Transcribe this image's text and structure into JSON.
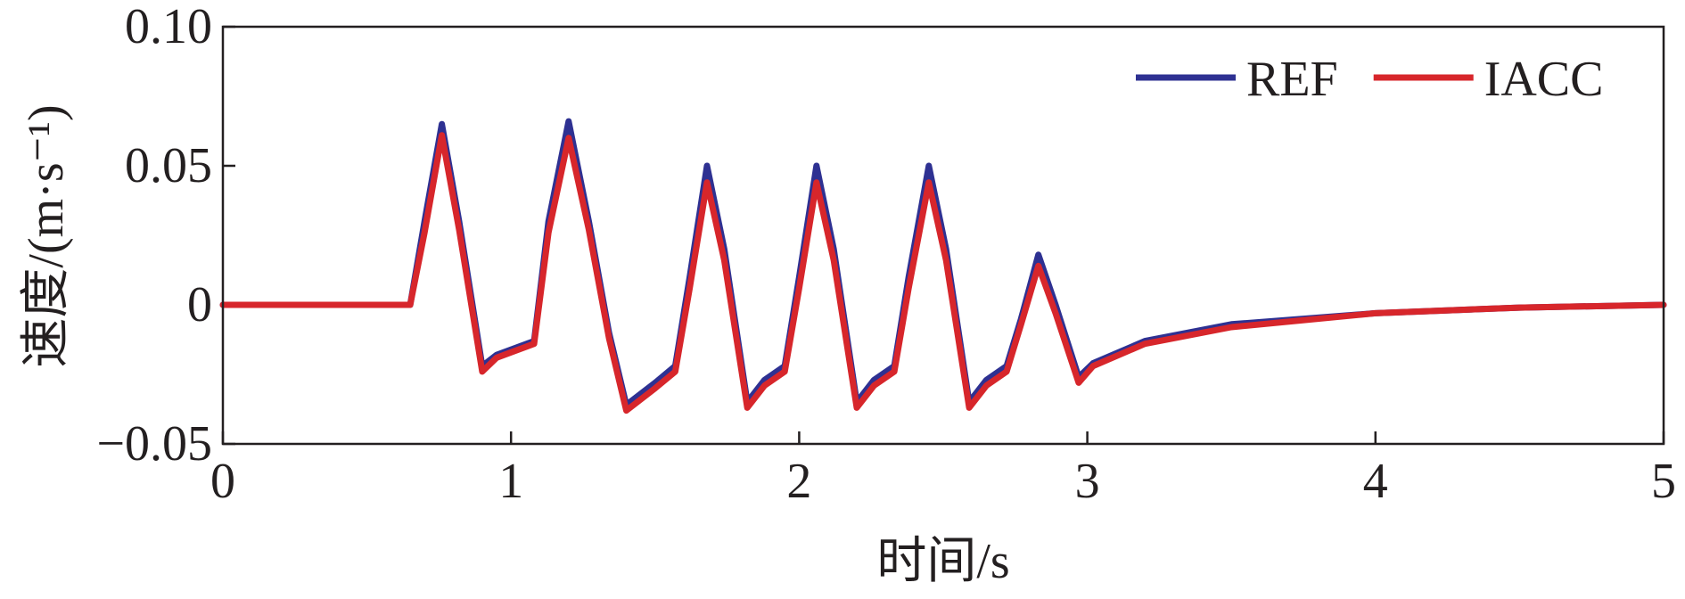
{
  "chart_data": {
    "type": "line",
    "xlabel": "时间/s",
    "ylabel": "速度/(m·s⁻¹)",
    "x": [
      0,
      0.65,
      0.7,
      0.76,
      0.82,
      0.9,
      0.95,
      1.08,
      1.13,
      1.2,
      1.27,
      1.34,
      1.4,
      1.5,
      1.57,
      1.62,
      1.68,
      1.74,
      1.82,
      1.88,
      1.95,
      2.0,
      2.06,
      2.12,
      2.2,
      2.26,
      2.33,
      2.38,
      2.45,
      2.51,
      2.59,
      2.65,
      2.72,
      2.77,
      2.83,
      2.89,
      2.97,
      3.02,
      3.2,
      3.5,
      4.0,
      4.5,
      5.0
    ],
    "series": [
      {
        "name": "REF",
        "color": "#2e3192",
        "values": [
          0,
          0,
          0.03,
          0.065,
          0.03,
          -0.022,
          -0.018,
          -0.013,
          0.03,
          0.066,
          0.03,
          -0.01,
          -0.036,
          -0.028,
          -0.022,
          0.01,
          0.05,
          0.02,
          -0.035,
          -0.027,
          -0.022,
          0.01,
          0.05,
          0.02,
          -0.035,
          -0.027,
          -0.022,
          0.01,
          0.05,
          0.02,
          -0.035,
          -0.027,
          -0.022,
          -0.005,
          0.018,
          0.0,
          -0.026,
          -0.021,
          -0.013,
          -0.007,
          -0.003,
          -0.001,
          0
        ]
      },
      {
        "name": "IACC",
        "color": "#d7262b",
        "values": [
          0,
          0,
          0.026,
          0.061,
          0.027,
          -0.024,
          -0.019,
          -0.014,
          0.026,
          0.06,
          0.027,
          -0.012,
          -0.038,
          -0.03,
          -0.024,
          0.006,
          0.044,
          0.016,
          -0.037,
          -0.029,
          -0.024,
          0.006,
          0.044,
          0.016,
          -0.037,
          -0.029,
          -0.024,
          0.006,
          0.044,
          0.016,
          -0.037,
          -0.029,
          -0.024,
          -0.007,
          0.014,
          -0.003,
          -0.028,
          -0.022,
          -0.014,
          -0.008,
          -0.003,
          -0.001,
          0
        ]
      }
    ],
    "xlim": [
      0,
      5
    ],
    "xticks": [
      0,
      1,
      2,
      3,
      4,
      5
    ],
    "ylim": [
      -0.05,
      0.1
    ],
    "yticks": [
      {
        "value": -0.05,
        "label": "−0.05"
      },
      0,
      0.05,
      {
        "value": 0.1,
        "label": "0.10"
      }
    ],
    "legend": "upper right"
  }
}
